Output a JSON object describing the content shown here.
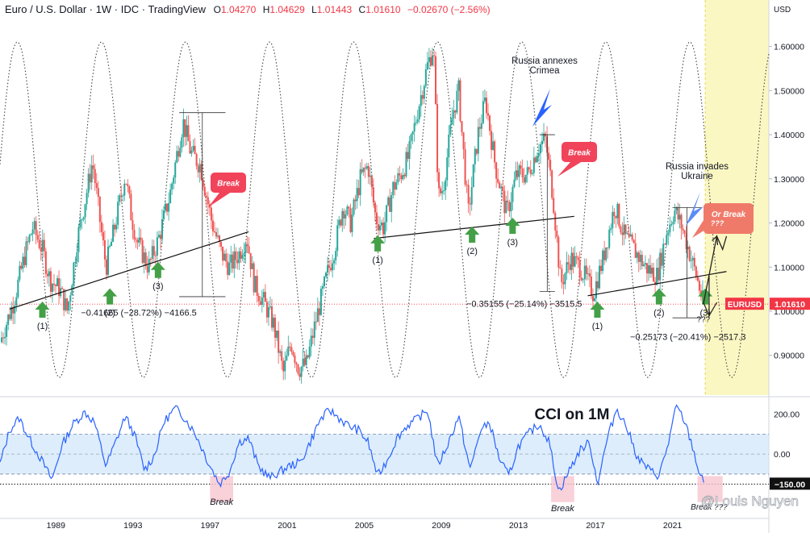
{
  "header": {
    "title": "Euro / U.S. Dollar · 1W · IDC · TradingView",
    "open_label": "O",
    "open": "1.04270",
    "high_label": "H",
    "high": "1.04629",
    "low_label": "L",
    "low": "1.01443",
    "close_label": "C",
    "close": "1.01610",
    "change": "−0.02670 (−2.56%)"
  },
  "currency_label": "USD",
  "symbol_tag": "EURUSD",
  "price_tag": "1.01610",
  "cci_tag": "−150.00",
  "watermark": "@Louis Nguyen",
  "colors": {
    "up": "#26a69a",
    "down": "#ef5350",
    "accent": "#f23645",
    "cci": "#2962ff",
    "band": "#cfe6fb",
    "break": "#f1435a",
    "or_break": "#f07a6a",
    "arrow_up": "#43a047",
    "arrow_blue": "#2962ff",
    "highlight": "#fbf7c2"
  },
  "chart_data": [
    {
      "type": "line",
      "title": "",
      "ylabel": "USD",
      "y_ticks": [
        "0.90000",
        "1.00000",
        "1.10000",
        "1.20000",
        "1.30000",
        "1.40000",
        "1.50000",
        "1.60000"
      ],
      "x_ticks": [
        "1989",
        "1993",
        "1997",
        "2001",
        "2005",
        "2009",
        "2013",
        "2017",
        "2021"
      ],
      "x_tick_values": [
        1989,
        1993,
        1997,
        2001,
        2005,
        2009,
        2013,
        2017,
        2021
      ],
      "xlim": [
        1986.1,
        2026.0
      ],
      "ylim": [
        0.81,
        1.665
      ],
      "price_path": [
        [
          1986.1,
          0.93
        ],
        [
          1986.8,
          1.02
        ],
        [
          1987.4,
          1.13
        ],
        [
          1987.8,
          1.19
        ],
        [
          1988.3,
          1.14
        ],
        [
          1988.7,
          1.07
        ],
        [
          1989.2,
          1.05
        ],
        [
          1989.6,
          1.0
        ],
        [
          1990.1,
          1.16
        ],
        [
          1990.6,
          1.27
        ],
        [
          1990.9,
          1.34
        ],
        [
          1991.3,
          1.2
        ],
        [
          1991.6,
          1.1
        ],
        [
          1992.0,
          1.18
        ],
        [
          1992.6,
          1.31
        ],
        [
          1992.9,
          1.22
        ],
        [
          1993.2,
          1.16
        ],
        [
          1993.8,
          1.1
        ],
        [
          1994.3,
          1.16
        ],
        [
          1994.9,
          1.26
        ],
        [
          1995.3,
          1.36
        ],
        [
          1995.6,
          1.43
        ],
        [
          1996.0,
          1.36
        ],
        [
          1996.5,
          1.33
        ],
        [
          1997.1,
          1.2
        ],
        [
          1997.6,
          1.13
        ],
        [
          1998.0,
          1.1
        ],
        [
          1998.5,
          1.13
        ],
        [
          1998.9,
          1.17
        ],
        [
          1999.3,
          1.06
        ],
        [
          1999.8,
          1.02
        ],
        [
          2000.3,
          0.97
        ],
        [
          2000.8,
          0.86
        ],
        [
          2001.2,
          0.93
        ],
        [
          2001.6,
          0.87
        ],
        [
          2002.0,
          0.88
        ],
        [
          2002.5,
          0.98
        ],
        [
          2003.0,
          1.07
        ],
        [
          2003.5,
          1.15
        ],
        [
          2003.9,
          1.24
        ],
        [
          2004.3,
          1.2
        ],
        [
          2004.8,
          1.3
        ],
        [
          2005.2,
          1.33
        ],
        [
          2005.6,
          1.21
        ],
        [
          2006.0,
          1.19
        ],
        [
          2006.5,
          1.28
        ],
        [
          2006.9,
          1.31
        ],
        [
          2007.3,
          1.35
        ],
        [
          2007.8,
          1.46
        ],
        [
          2008.3,
          1.56
        ],
        [
          2008.6,
          1.6
        ],
        [
          2008.85,
          1.26
        ],
        [
          2009.1,
          1.28
        ],
        [
          2009.6,
          1.45
        ],
        [
          2009.9,
          1.5
        ],
        [
          2010.4,
          1.22
        ],
        [
          2010.9,
          1.4
        ],
        [
          2011.3,
          1.48
        ],
        [
          2011.8,
          1.33
        ],
        [
          2012.4,
          1.22
        ],
        [
          2012.9,
          1.31
        ],
        [
          2013.5,
          1.31
        ],
        [
          2014.0,
          1.37
        ],
        [
          2014.4,
          1.39
        ],
        [
          2014.8,
          1.26
        ],
        [
          2015.2,
          1.06
        ],
        [
          2015.7,
          1.12
        ],
        [
          2016.2,
          1.1
        ],
        [
          2016.9,
          1.04
        ],
        [
          2017.4,
          1.12
        ],
        [
          2018.0,
          1.24
        ],
        [
          2018.5,
          1.17
        ],
        [
          2019.0,
          1.14
        ],
        [
          2019.6,
          1.1
        ],
        [
          2020.2,
          1.08
        ],
        [
          2020.7,
          1.18
        ],
        [
          2021.1,
          1.23
        ],
        [
          2021.5,
          1.19
        ],
        [
          2021.9,
          1.13
        ],
        [
          2022.3,
          1.07
        ],
        [
          2022.6,
          1.016
        ]
      ],
      "cycle_tops": [
        1987.0,
        1991.3,
        1995.7,
        2000.1,
        2004.4,
        2008.8,
        2013.1,
        2017.5,
        2021.9
      ],
      "cycle_peak": 1.61,
      "cycle_trough": 0.85,
      "projection": [
        [
          2022.6,
          1.016
        ],
        [
          2023.3,
          1.17
        ],
        [
          2023.6,
          1.14
        ],
        [
          2023.8,
          1.17
        ]
      ],
      "annotations": {
        "break_1": "Break",
        "break_2": "Break",
        "or_break": "Or Break ???",
        "crimea": "Russia annexes Crimea",
        "ukraine": "Russia invades Ukraine",
        "range_1": "−0.41665 (−28.72%) −4166.5",
        "range_2": "−0.35155 (−25.14%) −3515.5",
        "range_3": "−0.25173 (−20.41%) −2517.3",
        "points": [
          {
            "label": "(1)",
            "x": 1988.3,
            "y": 1.0
          },
          {
            "label": "(2)",
            "x": 1991.8,
            "y": 1.03
          },
          {
            "label": "(3)",
            "x": 1994.3,
            "y": 1.09
          },
          {
            "label": "(1)",
            "x": 2005.7,
            "y": 1.15
          },
          {
            "label": "(2)",
            "x": 2010.6,
            "y": 1.17
          },
          {
            "label": "(3)",
            "x": 2012.7,
            "y": 1.19
          },
          {
            "label": "(1)",
            "x": 2017.1,
            "y": 1.0
          },
          {
            "label": "(2)",
            "x": 2020.3,
            "y": 1.03
          },
          {
            "label": "(3)",
            "x": 2022.7,
            "y": 1.03
          }
        ],
        "extra_label": "???"
      }
    },
    {
      "type": "line",
      "title": "CCI on 1M",
      "y_ticks": [
        "200.00",
        "0.00"
      ],
      "y_tick_values": [
        200,
        0
      ],
      "ylim": [
        -310,
        275
      ],
      "band": [
        -100,
        100
      ],
      "lower_line": -150,
      "break_labels": [
        "Break",
        "Break",
        "Break ???"
      ],
      "cci_path": [
        [
          1986.1,
          -50
        ],
        [
          1986.6,
          120
        ],
        [
          1987.1,
          180
        ],
        [
          1987.6,
          80
        ],
        [
          1988.2,
          -20
        ],
        [
          1988.8,
          -130
        ],
        [
          1989.3,
          40
        ],
        [
          1989.9,
          150
        ],
        [
          1990.5,
          210
        ],
        [
          1991.0,
          160
        ],
        [
          1991.6,
          -60
        ],
        [
          1992.1,
          60
        ],
        [
          1992.6,
          190
        ],
        [
          1993.1,
          90
        ],
        [
          1993.6,
          -80
        ],
        [
          1994.1,
          -10
        ],
        [
          1994.6,
          160
        ],
        [
          1995.2,
          230
        ],
        [
          1995.7,
          180
        ],
        [
          1996.3,
          90
        ],
        [
          1996.9,
          -40
        ],
        [
          1997.5,
          -150
        ],
        [
          1998.0,
          -90
        ],
        [
          1998.5,
          60
        ],
        [
          1999.0,
          80
        ],
        [
          1999.5,
          -60
        ],
        [
          2000.1,
          -120
        ],
        [
          2000.6,
          -90
        ],
        [
          2001.1,
          -60
        ],
        [
          2001.7,
          -40
        ],
        [
          2002.2,
          60
        ],
        [
          2002.7,
          170
        ],
        [
          2003.2,
          220
        ],
        [
          2003.7,
          180
        ],
        [
          2004.2,
          140
        ],
        [
          2004.7,
          120
        ],
        [
          2005.2,
          60
        ],
        [
          2005.7,
          -110
        ],
        [
          2006.2,
          -30
        ],
        [
          2006.7,
          80
        ],
        [
          2007.2,
          140
        ],
        [
          2007.8,
          180
        ],
        [
          2008.3,
          220
        ],
        [
          2008.8,
          -60
        ],
        [
          2009.3,
          40
        ],
        [
          2009.9,
          190
        ],
        [
          2010.5,
          -80
        ],
        [
          2011.0,
          110
        ],
        [
          2011.5,
          160
        ],
        [
          2012.0,
          -20
        ],
        [
          2012.5,
          -110
        ],
        [
          2013.0,
          40
        ],
        [
          2013.6,
          110
        ],
        [
          2014.1,
          150
        ],
        [
          2014.6,
          60
        ],
        [
          2015.1,
          -190
        ],
        [
          2015.6,
          -90
        ],
        [
          2016.2,
          20
        ],
        [
          2016.7,
          60
        ],
        [
          2017.1,
          -150
        ],
        [
          2017.6,
          70
        ],
        [
          2018.1,
          230
        ],
        [
          2018.6,
          140
        ],
        [
          2019.2,
          -20
        ],
        [
          2019.8,
          -80
        ],
        [
          2020.3,
          -110
        ],
        [
          2020.8,
          60
        ],
        [
          2021.2,
          240
        ],
        [
          2021.6,
          170
        ],
        [
          2022.0,
          50
        ],
        [
          2022.4,
          -100
        ],
        [
          2022.7,
          -160
        ]
      ]
    }
  ]
}
